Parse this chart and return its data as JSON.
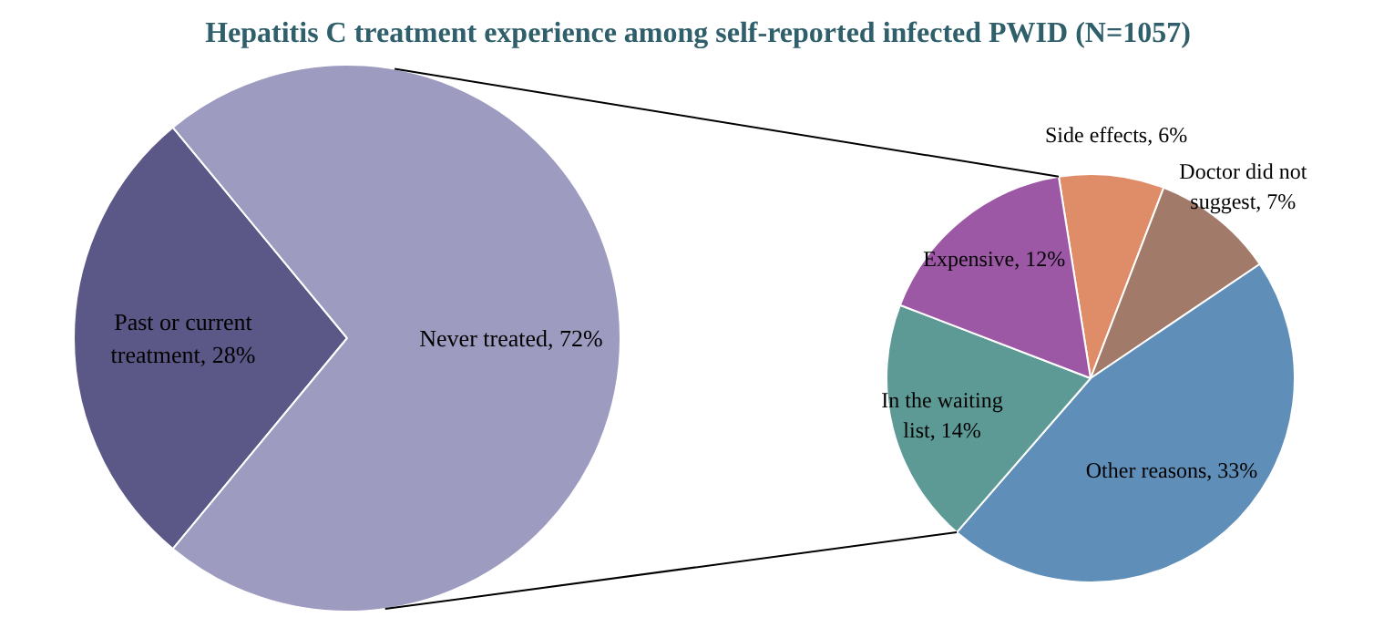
{
  "chart_data": [
    {
      "type": "pie",
      "title": "Hepatitis C treatment experience among self-reported infected PWID (N=1057)",
      "categories": [
        "Past or current treatment",
        "Never treated"
      ],
      "values": [
        28,
        72
      ],
      "value_labels": [
        "28%",
        "72%"
      ],
      "colors": [
        "#5b5887",
        "#9d9bc0"
      ]
    },
    {
      "type": "pie",
      "categories": [
        "Side effects",
        "Doctor did not suggest",
        "Other reasons",
        "In the waiting list",
        "Expensive"
      ],
      "values": [
        6,
        7,
        33,
        14,
        12
      ],
      "value_labels": [
        "6%",
        "7%",
        "33%",
        "14%",
        "12%"
      ],
      "colors": [
        "#df8c69",
        "#a27a69",
        "#5f8fb8",
        "#5d9a95",
        "#9c58a5"
      ]
    }
  ]
}
